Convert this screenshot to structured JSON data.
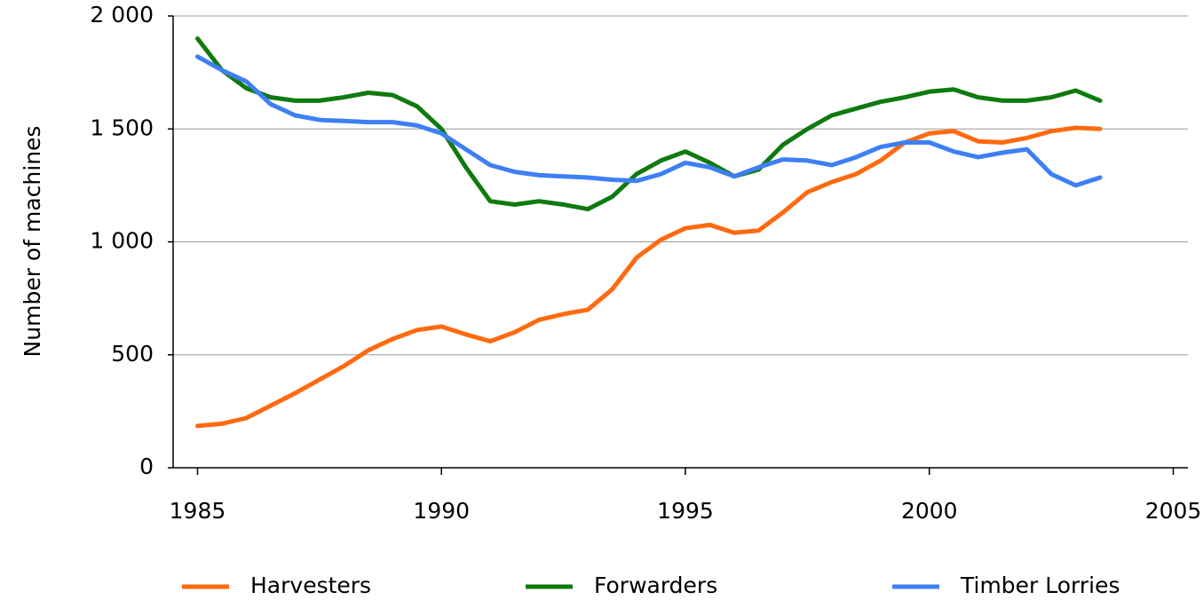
{
  "chart_data": {
    "type": "line",
    "y_label": "Number of machines",
    "x": [
      1985,
      1985.5,
      1986,
      1986.5,
      1987,
      1987.5,
      1988,
      1988.5,
      1989,
      1989.5,
      1990,
      1990.5,
      1991,
      1991.5,
      1992,
      1992.5,
      1993,
      1993.5,
      1994,
      1994.5,
      1995,
      1995.5,
      1996,
      1996.5,
      1997,
      1997.5,
      1998,
      1998.5,
      1999,
      1999.5,
      2000,
      2000.5,
      2001,
      2001.5,
      2002,
      2002.5,
      2003,
      2003.5
    ],
    "series": [
      {
        "name": "Harvesters",
        "color": "#ff6a10",
        "values": [
          185,
          195,
          220,
          275,
          330,
          390,
          450,
          520,
          570,
          610,
          625,
          590,
          560,
          600,
          655,
          680,
          700,
          790,
          930,
          1010,
          1060,
          1075,
          1040,
          1050,
          1130,
          1220,
          1265,
          1300,
          1360,
          1440,
          1480,
          1490,
          1445,
          1440,
          1460,
          1490,
          1505,
          1500
        ]
      },
      {
        "name": "Forwarders",
        "color": "#0f7a0f",
        "values": [
          1900,
          1760,
          1680,
          1640,
          1625,
          1625,
          1640,
          1660,
          1650,
          1600,
          1500,
          1330,
          1180,
          1165,
          1180,
          1165,
          1145,
          1200,
          1300,
          1360,
          1400,
          1350,
          1290,
          1320,
          1430,
          1500,
          1560,
          1590,
          1620,
          1640,
          1665,
          1675,
          1640,
          1625,
          1625,
          1640,
          1670,
          1625
        ]
      },
      {
        "name": "Timber Lorries",
        "color": "#3d7ff5",
        "values": [
          1820,
          1760,
          1710,
          1610,
          1560,
          1540,
          1535,
          1530,
          1530,
          1515,
          1480,
          1410,
          1340,
          1310,
          1295,
          1290,
          1285,
          1275,
          1270,
          1300,
          1350,
          1330,
          1290,
          1330,
          1365,
          1360,
          1340,
          1375,
          1420,
          1440,
          1440,
          1400,
          1375,
          1395,
          1410,
          1300,
          1250,
          1285
        ]
      }
    ],
    "xlim": [
      1984.5,
      2005.3
    ],
    "xticks": [
      1985,
      1990,
      1995,
      2000,
      2005
    ],
    "ylim": [
      0,
      2000
    ],
    "yticks": [
      0,
      500,
      {
        "value": 1000,
        "label": "1 000"
      },
      {
        "value": 1500,
        "label": "1 500"
      },
      {
        "value": 2000,
        "label": "2 000"
      }
    ],
    "grid": true,
    "legend": "bottom"
  }
}
